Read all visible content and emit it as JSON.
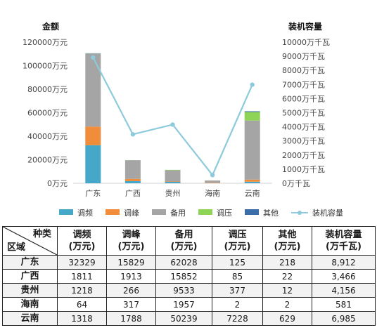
{
  "chart_data": {
    "type": "bar",
    "stacked": true,
    "categories": [
      "广东",
      "广西",
      "贵州",
      "海南",
      "云南"
    ],
    "series": [
      {
        "name": "调频",
        "values": [
          32329,
          1811,
          1218,
          64,
          1318
        ],
        "color": "#45a8c8"
      },
      {
        "name": "调峰",
        "values": [
          15829,
          1913,
          266,
          317,
          1788
        ],
        "color": "#f08c3a"
      },
      {
        "name": "备用",
        "values": [
          62028,
          15852,
          9533,
          1957,
          50239
        ],
        "color": "#a5a5a5"
      },
      {
        "name": "调压",
        "values": [
          125,
          85,
          377,
          2,
          7228
        ],
        "color": "#8ed456"
      },
      {
        "name": "其他",
        "values": [
          218,
          22,
          12,
          2,
          629
        ],
        "color": "#3b6ea8"
      }
    ],
    "line_series": {
      "name": "装机容量",
      "values": [
        8912,
        3466,
        4156,
        581,
        6985
      ],
      "color": "#8ccadc"
    },
    "ylabel": "金额",
    "y2label": "装机容量",
    "ylim": [
      0,
      120000
    ],
    "y2lim": [
      0,
      10000
    ],
    "yticks": [
      "0万元",
      "20000万元",
      "40000万元",
      "60000万元",
      "80000万元",
      "100000万元",
      "120000万元"
    ],
    "y2ticks": [
      "0万千瓦",
      "1000万千瓦",
      "2000万千瓦",
      "3000万千瓦",
      "4000万千瓦",
      "5000万千瓦",
      "6000万千瓦",
      "7000万千瓦",
      "8000万千瓦",
      "9000万千瓦",
      "10000万千瓦"
    ],
    "legend_position": "bottom",
    "grid": false
  },
  "table": {
    "corner_top": "种类",
    "corner_bottom": "区域",
    "headers": [
      {
        "line1": "调频",
        "line2": "(万元)"
      },
      {
        "line1": "调峰",
        "line2": "(万元)"
      },
      {
        "line1": "备用",
        "line2": "(万元)"
      },
      {
        "line1": "调压",
        "line2": "(万元)"
      },
      {
        "line1": "其他",
        "line2": "(万元)"
      },
      {
        "line1": "装机容量",
        "line2": "(万千瓦)"
      }
    ],
    "rows": [
      {
        "region": "广东",
        "cells": [
          "32329",
          "15829",
          "62028",
          "125",
          "218",
          "8,912"
        ]
      },
      {
        "region": "广西",
        "cells": [
          "1811",
          "1913",
          "15852",
          "85",
          "22",
          "3,466"
        ]
      },
      {
        "region": "贵州",
        "cells": [
          "1218",
          "266",
          "9533",
          "377",
          "12",
          "4,156"
        ]
      },
      {
        "region": "海南",
        "cells": [
          "64",
          "317",
          "1957",
          "2",
          "2",
          "581"
        ]
      },
      {
        "region": "云南",
        "cells": [
          "1318",
          "1788",
          "50239",
          "7228",
          "629",
          "6,985"
        ]
      }
    ]
  }
}
